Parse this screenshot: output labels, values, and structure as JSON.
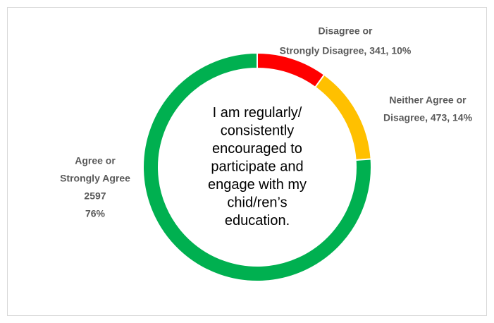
{
  "chart_data": {
    "type": "pie",
    "donut": true,
    "values": [
      341,
      473,
      2597
    ],
    "colors": [
      "#ff0000",
      "#ffc000",
      "#00b050"
    ],
    "value_labels": [
      [
        "Disagree or",
        "Strongly Disagree, 341, 10%"
      ],
      [
        "Neither Agree or",
        "Disagree, 473, 14%"
      ],
      [
        "Agree or",
        "Strongly Agree",
        "2597",
        "76%"
      ]
    ],
    "center_text": [
      "I am regularly/",
      "consistently",
      "encouraged to",
      "participate and",
      "engage with my",
      "chid/ren’s",
      "education."
    ]
  }
}
